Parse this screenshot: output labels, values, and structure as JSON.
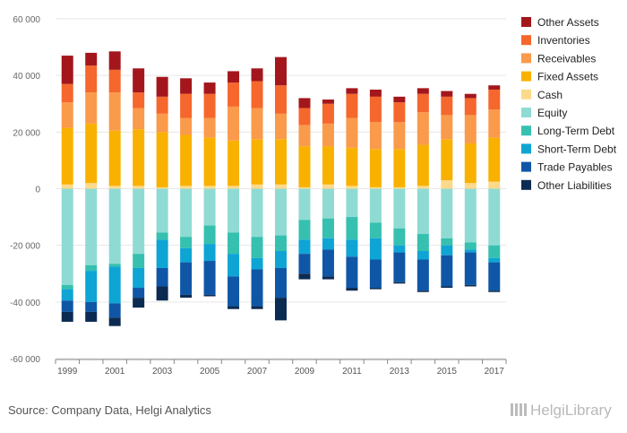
{
  "chart_data": {
    "type": "bar",
    "stacked": true,
    "categories": [
      "1999",
      "2000",
      "2001",
      "2002",
      "2003",
      "2004",
      "2005",
      "2006",
      "2007",
      "2008",
      "2009",
      "2010",
      "2011",
      "2012",
      "2013",
      "2014",
      "2015",
      "2016",
      "2017"
    ],
    "x_tick_labels": [
      "1999",
      "2001",
      "2003",
      "2005",
      "2007",
      "2009",
      "2011",
      "2013",
      "2015",
      "2017"
    ],
    "ylim": [
      -60000,
      60000
    ],
    "y_ticks": [
      60000,
      40000,
      20000,
      0,
      -20000,
      -40000,
      -60000
    ],
    "y_tick_labels": [
      "60 000",
      "40 000",
      "20 000",
      "0",
      "-20 000",
      "-40 000",
      "-60 000"
    ],
    "grid": true,
    "legend_position": "right",
    "series": [
      {
        "name": "Cash",
        "color": "#fdd98b",
        "values": [
          1500,
          2000,
          1000,
          1000,
          500,
          1000,
          1000,
          1000,
          1500,
          1500,
          500,
          1500,
          1000,
          500,
          500,
          1000,
          3000,
          2000,
          2500
        ]
      },
      {
        "name": "Fixed Assets",
        "color": "#f9b100",
        "values": [
          20000,
          21000,
          19500,
          20000,
          19500,
          18000,
          17000,
          16000,
          16000,
          16000,
          14500,
          13500,
          13500,
          13500,
          13500,
          14500,
          14500,
          14000,
          15500
        ]
      },
      {
        "name": "Receivables",
        "color": "#fa9a4b",
        "values": [
          9000,
          11000,
          13500,
          7500,
          6500,
          6000,
          7000,
          12000,
          11000,
          9000,
          7500,
          8000,
          10500,
          9500,
          9500,
          11500,
          8500,
          10000,
          10000
        ]
      },
      {
        "name": "Inventories",
        "color": "#f5672c",
        "values": [
          6500,
          9500,
          8000,
          5500,
          6000,
          8500,
          8500,
          8500,
          9500,
          10000,
          6000,
          7000,
          8500,
          9000,
          7000,
          6500,
          6500,
          6000,
          7000
        ]
      },
      {
        "name": "Other Assets",
        "color": "#a3171c",
        "values": [
          10000,
          4500,
          6500,
          8500,
          7000,
          5500,
          4000,
          4000,
          4500,
          10000,
          3500,
          1500,
          2000,
          2500,
          2000,
          2000,
          2000,
          1500,
          1500
        ]
      },
      {
        "name": "Equity",
        "color": "#8fdbd4",
        "values": [
          -34000,
          -27000,
          -26500,
          -23000,
          -15500,
          -17000,
          -13000,
          -15500,
          -17000,
          -16500,
          -11000,
          -10500,
          -10000,
          -12000,
          -14000,
          -16000,
          -17500,
          -19000,
          -20000
        ]
      },
      {
        "name": "Long-Term Debt",
        "color": "#36c0af",
        "values": [
          -1500,
          -2000,
          -1000,
          -5000,
          -2500,
          -4000,
          -6500,
          -7500,
          -7500,
          -5500,
          -7000,
          -7000,
          -8000,
          -5500,
          -6000,
          -6000,
          -2500,
          -2500,
          -4500
        ]
      },
      {
        "name": "Short-Term Debt",
        "color": "#0ea5d4",
        "values": [
          -4000,
          -11000,
          -13000,
          -7000,
          -10000,
          -5000,
          -6000,
          -8000,
          -4000,
          -6000,
          -5000,
          -4000,
          -6000,
          -7500,
          -2500,
          -3000,
          -3500,
          -1000,
          -1500
        ]
      },
      {
        "name": "Trade Payables",
        "color": "#0f57a6",
        "values": [
          -4000,
          -3500,
          -5000,
          -3500,
          -6500,
          -11500,
          -12000,
          -10500,
          -13000,
          -10500,
          -7000,
          -9500,
          -11000,
          -10000,
          -10500,
          -11000,
          -11000,
          -11500,
          -10000
        ]
      },
      {
        "name": "Other Liabilities",
        "color": "#0c2b52",
        "values": [
          -3500,
          -3500,
          -3000,
          -3500,
          -5000,
          -1000,
          -500,
          -1000,
          -1000,
          -8000,
          -2000,
          -1000,
          -1000,
          -500,
          -500,
          -500,
          -500,
          -500,
          -500
        ]
      }
    ],
    "legend_order": [
      "Other Assets",
      "Inventories",
      "Receivables",
      "Fixed Assets",
      "Cash",
      "Equity",
      "Long-Term Debt",
      "Short-Term Debt",
      "Trade Payables",
      "Other Liabilities"
    ]
  },
  "source_text": "Source: Company Data, Helgi Analytics",
  "logo_text": "HelgiLibrary"
}
